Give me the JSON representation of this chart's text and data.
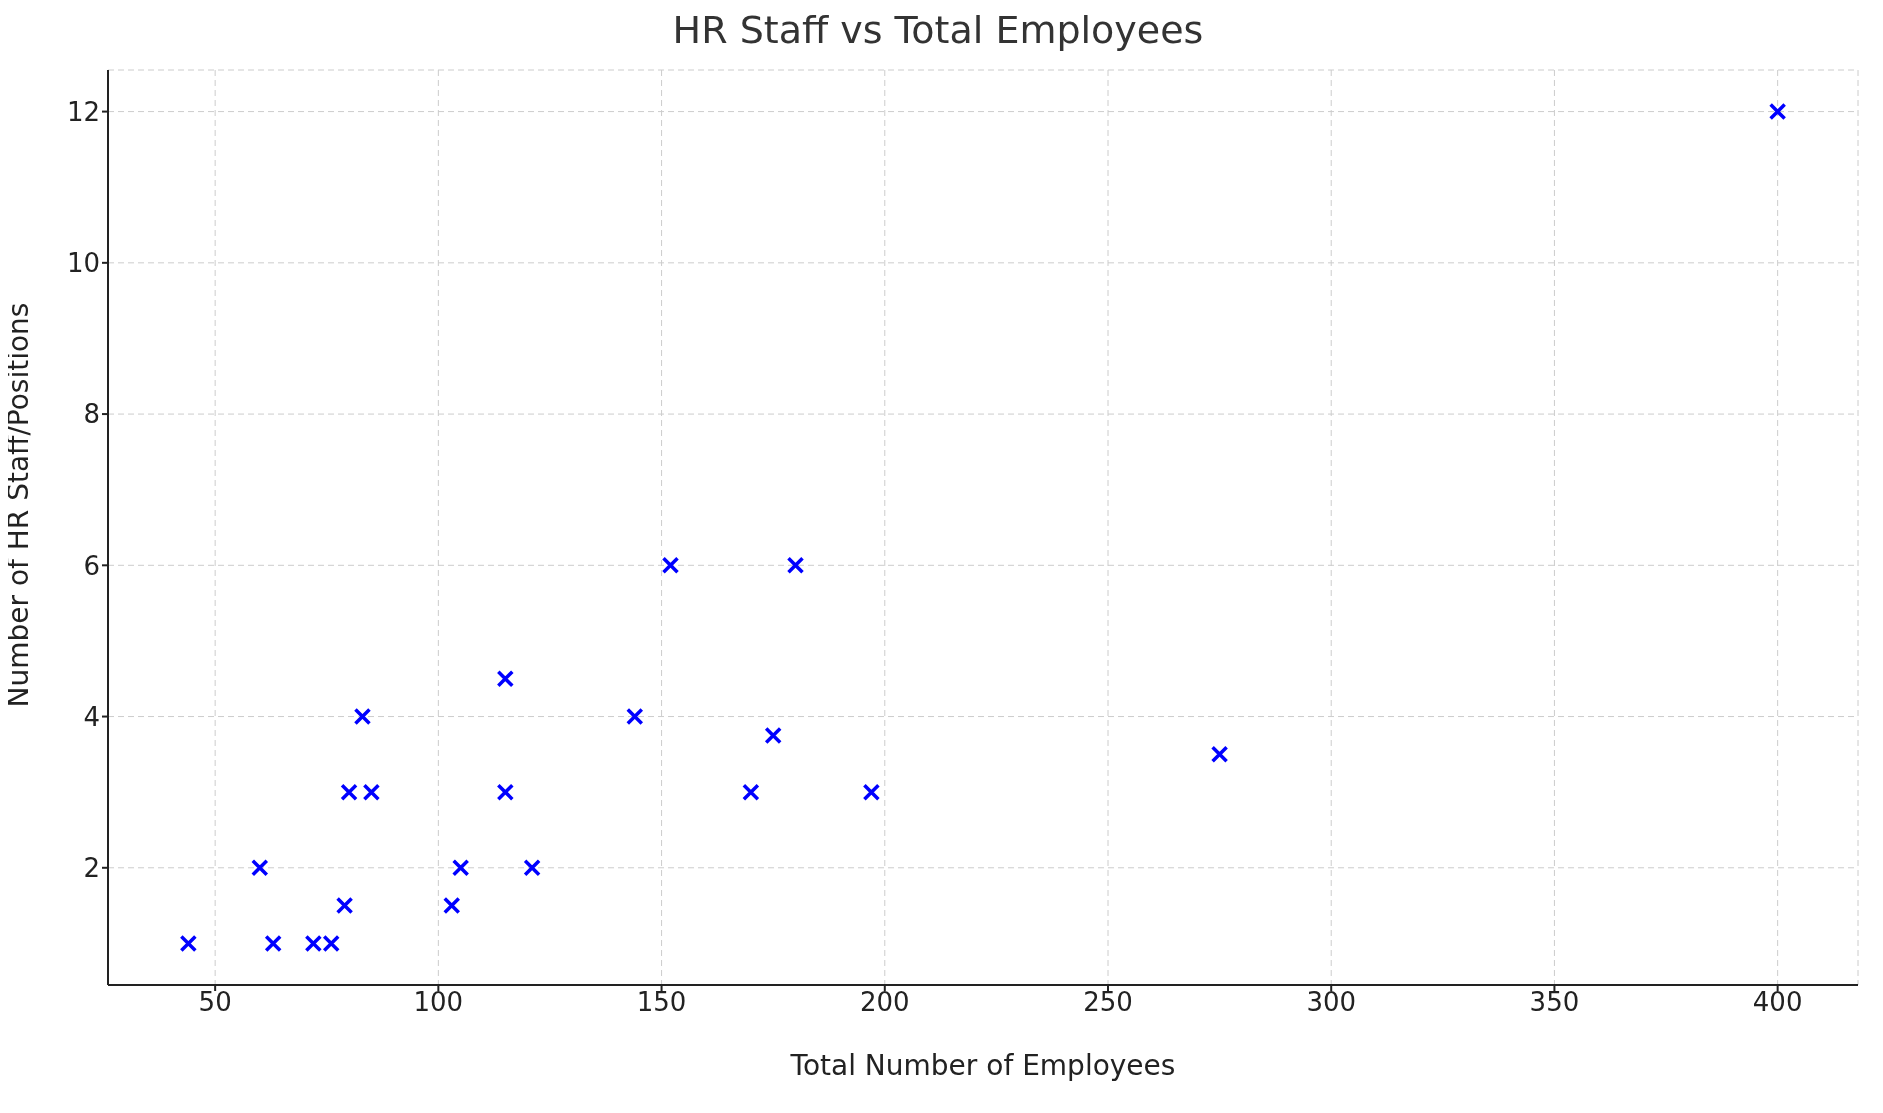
{
  "chart_data": {
    "type": "scatter",
    "title": "HR Staff vs Total Employees",
    "xlabel": "Total Number of Employees",
    "ylabel": "Number of HR Staff/Positions",
    "x": [
      44,
      60,
      63,
      72,
      76,
      79,
      80,
      83,
      85,
      103,
      105,
      115,
      115,
      121,
      144,
      152,
      170,
      175,
      180,
      197,
      275,
      400
    ],
    "values": [
      1,
      2,
      1,
      1,
      1,
      1.5,
      3,
      4,
      3,
      1.5,
      2,
      4.5,
      3,
      2,
      4,
      6,
      3,
      3.75,
      6,
      3,
      3.5,
      12
    ],
    "color": "#0000ff",
    "marker": "cross",
    "xlim": [
      26,
      418
    ],
    "xticks": [
      50,
      100,
      150,
      200,
      250,
      300,
      350,
      400
    ],
    "ylim": [
      0.45,
      12.55
    ],
    "yticks": [
      2,
      4,
      6,
      8,
      10,
      12
    ],
    "grid": true,
    "legend": false
  }
}
